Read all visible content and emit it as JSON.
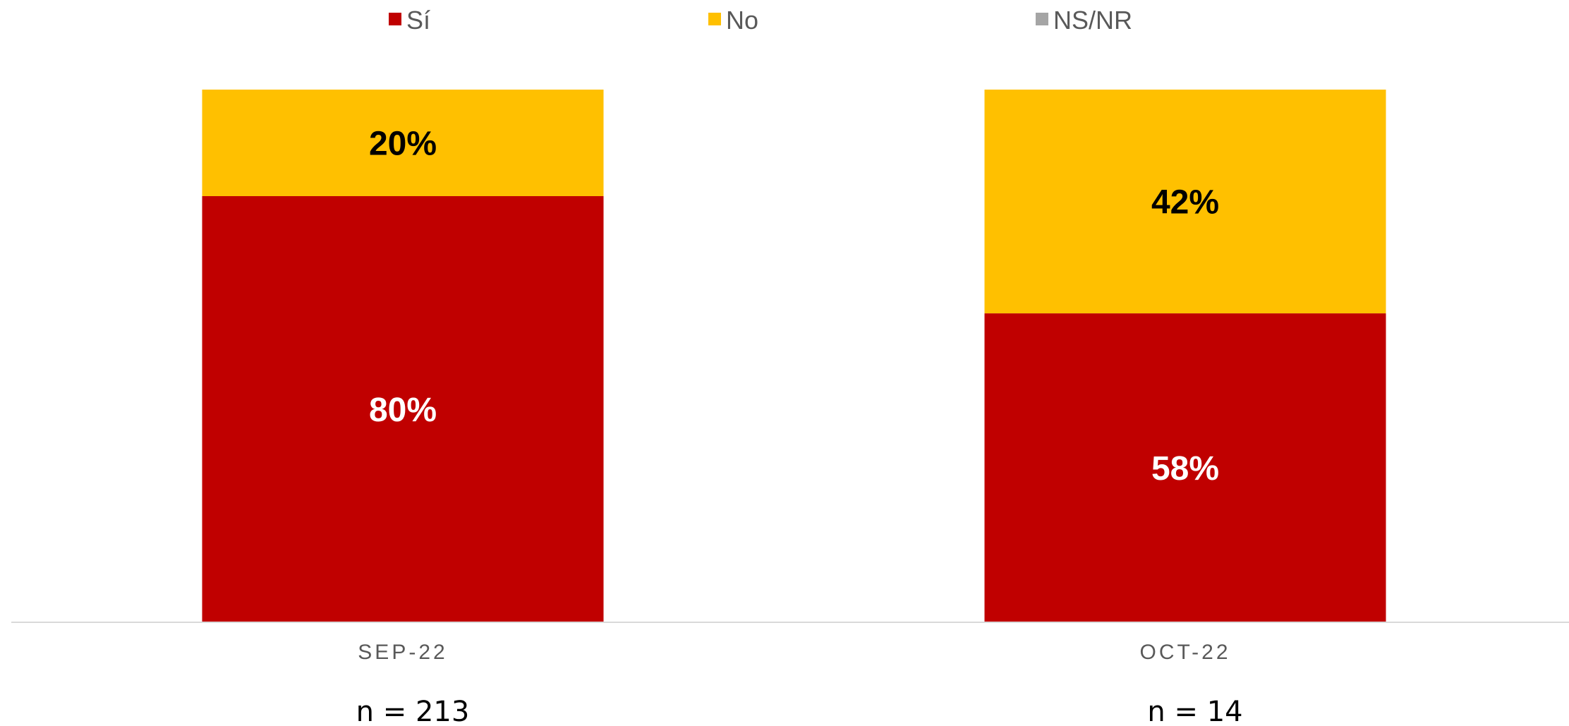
{
  "chart_data": {
    "type": "bar",
    "stacked": true,
    "percent_stacked": true,
    "categories": [
      "SEP-22",
      "OCT-22"
    ],
    "series": [
      {
        "name": "Sí",
        "values": [
          80,
          58
        ],
        "labels": [
          "80%",
          "58%"
        ],
        "color": "#C00000",
        "label_color": "#FFFFFF"
      },
      {
        "name": "No",
        "values": [
          20,
          42
        ],
        "labels": [
          "20%",
          "42%"
        ],
        "color": "#FFC000",
        "label_color": "#000000"
      },
      {
        "name": "NS/NR",
        "values": [
          0,
          0
        ],
        "labels": [
          "",
          ""
        ],
        "color": "#A5A5A5",
        "label_color": "#000000"
      }
    ],
    "sample_sizes": [
      "n = 213",
      "n = 14"
    ],
    "ylim": [
      0,
      100
    ],
    "legend_position": "top",
    "grid": false,
    "title": "",
    "xlabel": "",
    "ylabel": ""
  }
}
